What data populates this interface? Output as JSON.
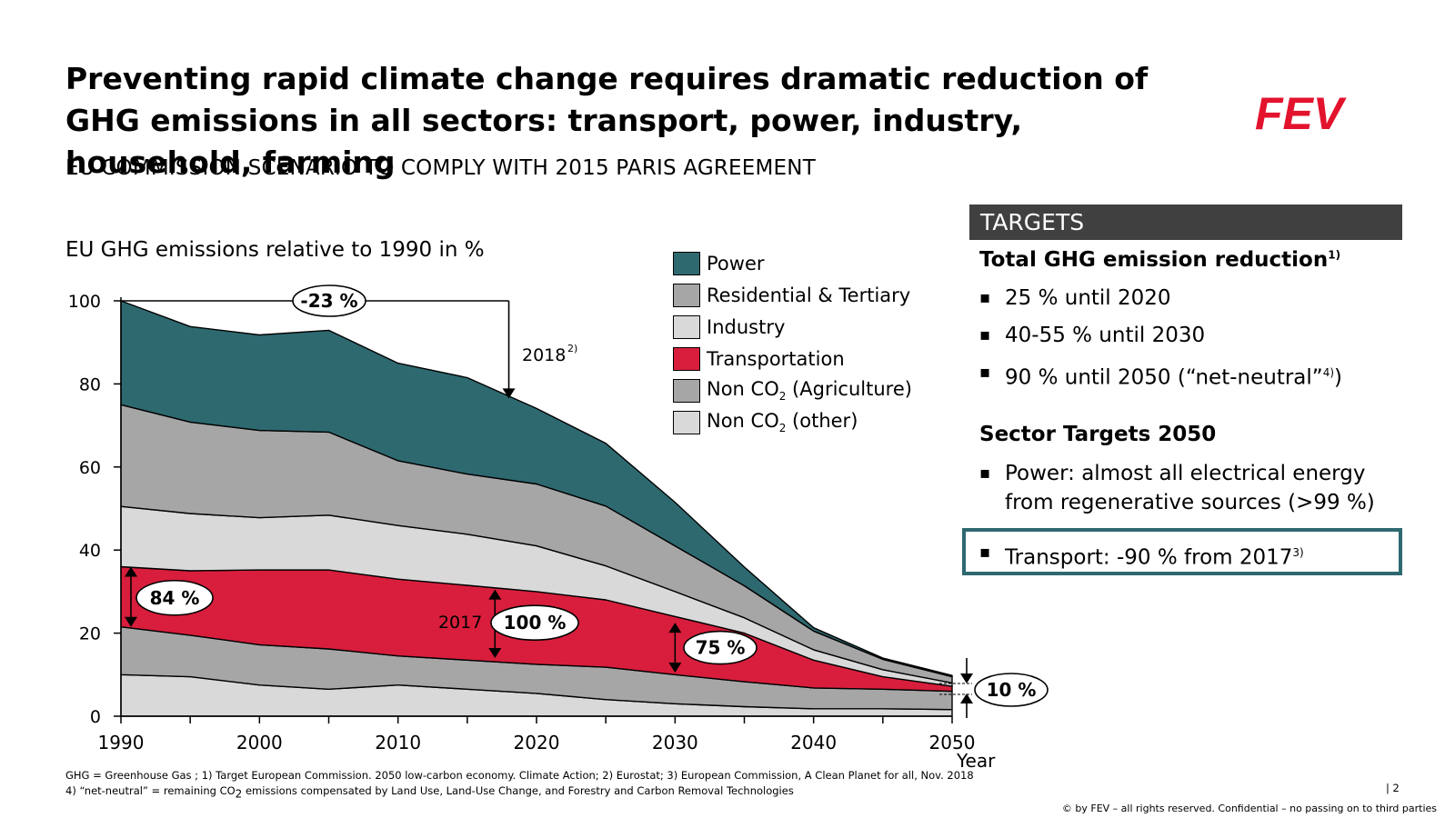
{
  "slide": {
    "title": "Preventing rapid climate change requires dramatic reduction of GHG emissions in all sectors: transport, power, industry, household, farming",
    "subtitle": "EU COMMISSION SCENARIO TO COMPLY WITH 2015 PARIS AGREEMENT",
    "logo_text": "FEV",
    "brand_color": "#e3132d"
  },
  "chart_data": {
    "type": "area",
    "stacked": true,
    "title": "EU GHG emissions relative to 1990 in %",
    "xlabel": "Year",
    "ylabel": "",
    "x": [
      1990,
      1995,
      2000,
      2005,
      2010,
      2015,
      2020,
      2025,
      2030,
      2035,
      2040,
      2045,
      2050
    ],
    "xticks": [
      1990,
      2000,
      2010,
      2020,
      2030,
      2040,
      2050
    ],
    "yticks": [
      0,
      20,
      40,
      60,
      80,
      100
    ],
    "xlim": [
      1990,
      2050
    ],
    "ylim": [
      0,
      100
    ],
    "series": [
      {
        "name": "Non CO2 (other)",
        "color": "#d9d9d9",
        "values": [
          10,
          9.5,
          7.5,
          6.5,
          7.5,
          6.5,
          5.5,
          4,
          3,
          2.3,
          1.8,
          1.8,
          1.6
        ]
      },
      {
        "name": "Non CO2 (Agriculture)",
        "color": "#a6a6a6",
        "values": [
          11.5,
          10,
          9.7,
          9.7,
          7,
          7,
          7,
          7.8,
          7,
          6,
          5,
          4.7,
          4.4
        ]
      },
      {
        "name": "Transportation",
        "color": "#d81e3c",
        "values": [
          14.5,
          15.5,
          18,
          19,
          18.5,
          18,
          17.5,
          16.2,
          14,
          11.7,
          6.7,
          3,
          1.2
        ]
      },
      {
        "name": "Industry",
        "color": "#d9d9d9",
        "values": [
          14.5,
          13.8,
          12.6,
          13.2,
          12.9,
          12.3,
          11,
          8.2,
          6,
          3.7,
          2.5,
          1.7,
          0.8
        ]
      },
      {
        "name": "Residential & Tertiary",
        "color": "#a6a6a6",
        "values": [
          24.5,
          22,
          21,
          20,
          15.6,
          14.5,
          14.9,
          14.4,
          11,
          7.7,
          4.5,
          2.5,
          1.5
        ]
      },
      {
        "name": "Power",
        "color": "#2e6970",
        "values": [
          25,
          23,
          23,
          24.5,
          23.5,
          23.2,
          18.2,
          15.1,
          10.5,
          4.5,
          0.8,
          0.3,
          0.3
        ]
      }
    ],
    "legend_order": [
      "Power",
      "Residential & Tertiary",
      "Industry",
      "Transportation",
      "Non CO2 (Agriculture)",
      "Non CO2 (other)"
    ],
    "annotations": {
      "minus23": "-23 %",
      "label_2018": "2018",
      "label_2018_sup": "2)",
      "p84": "84 %",
      "label_2017": "2017",
      "p100": "100 %",
      "p75": "75 %",
      "p10": "10 %"
    }
  },
  "legend": [
    {
      "label": "Power",
      "sub": "",
      "after": "",
      "color": "#2e6970"
    },
    {
      "label": "Residential & Tertiary",
      "sub": "",
      "after": "",
      "color": "#a6a6a6"
    },
    {
      "label": "Industry",
      "sub": "",
      "after": "",
      "color": "#d9d9d9"
    },
    {
      "label": "Transportation",
      "sub": "",
      "after": "",
      "color": "#d81e3c"
    },
    {
      "label": "Non CO",
      "sub": "2",
      "after": " (Agriculture)",
      "color": "#a6a6a6"
    },
    {
      "label": "Non CO",
      "sub": "2",
      "after": " (other)",
      "color": "#d9d9d9"
    }
  ],
  "targets": {
    "header": "TARGETS",
    "total_heading": "Total GHG emission reduction",
    "total_heading_sup": "1)",
    "total_items": [
      "25 % until 2020",
      "40-55 % until 2030"
    ],
    "item_2050_a": "90 % until 2050 (“net-neutral”",
    "item_2050_sup": "4)",
    "item_2050_b": ")",
    "sector_heading": "Sector Targets 2050",
    "power_line1": "Power: almost all electrical energy",
    "power_line2": "from regenerative sources (>99 %)",
    "transport": "Transport: -90 % from 2017",
    "transport_sup": "3)",
    "highlight_color": "#2e6970"
  },
  "footer": {
    "line1": "GHG = Greenhouse Gas ; 1) Target European Commission. 2050 low-carbon economy. Climate Action;  2) Eurostat;  3) European Commission, A Clean Planet for all, Nov. 2018",
    "line2a": "4) “net-neutral” = remaining CO",
    "line2sub": "2",
    "line2b": " emissions compensated by Land Use, Land-Use Change, and Forestry and Carbon Removal Technologies",
    "page": "| 2",
    "copyright": "© by FEV – all rights reserved. Confidential – no passing on to third parties"
  }
}
